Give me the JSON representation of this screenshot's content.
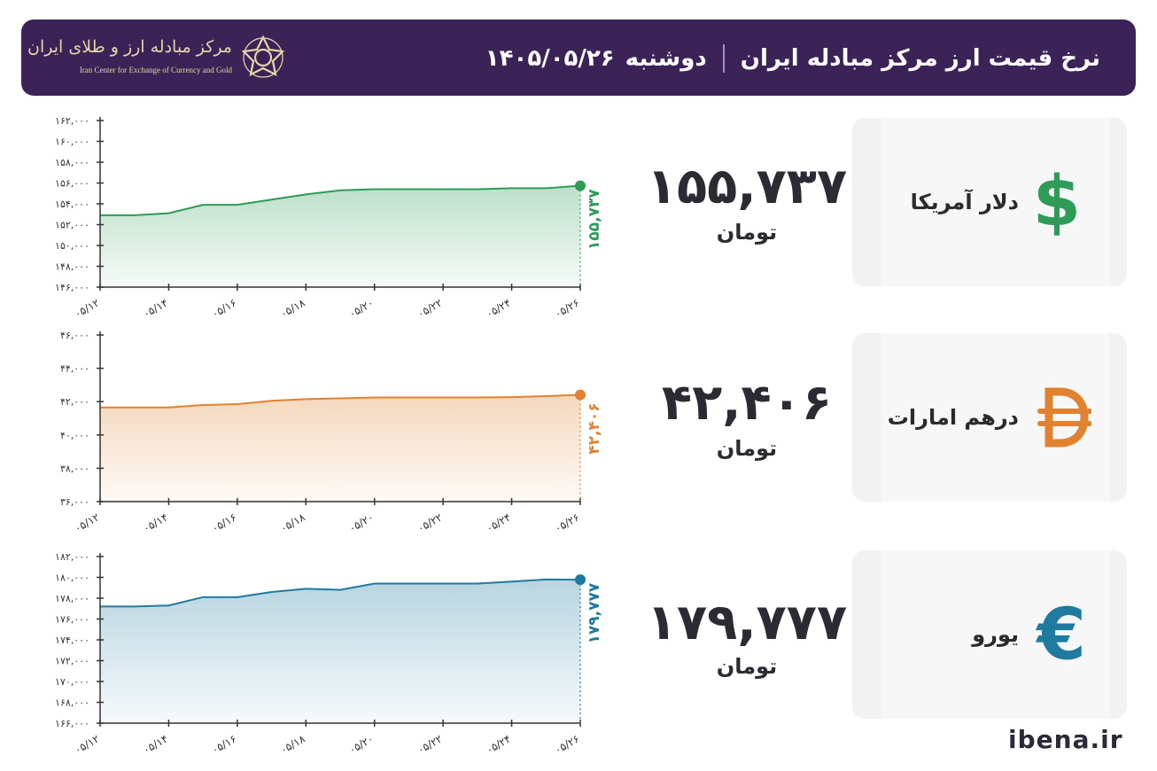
{
  "header": {
    "title": "نرخ قیمت ارز مرکز مبادله ایران",
    "weekday": "دوشنبه",
    "date": "۱۴۰۵/۰۵/۲۶",
    "logo_fa": "مرکز مبادله ارز و طلای ایران",
    "logo_en": "Iran Center for Exchange of Currency and Gold"
  },
  "colors": {
    "header_bg": "#3b2257",
    "usd": "#2e9b57",
    "aed": "#e0822f",
    "eur": "#1f7aa0"
  },
  "watermark": "ibena.ir",
  "chart_data": [
    {
      "type": "area",
      "currency": "دلار آمریکا",
      "icon": "dollar-sign-icon",
      "price_label": "۱۵۵,۷۳۷",
      "unit": "تومان",
      "end_label": "۱۵۵,۷۳۷",
      "color": "#2e9b57",
      "x": [
        "05/12",
        "05/13",
        "05/14",
        "05/15",
        "05/16",
        "05/17",
        "05/18",
        "05/19",
        "05/20",
        "05/21",
        "05/22",
        "05/23",
        "05/24",
        "05/25",
        "05/26"
      ],
      "x_tick_labels": [
        "۰۵/۱۲",
        "۰۵/۱۴",
        "۰۵/۱۶",
        "۰۵/۱۸",
        "۰۵/۲۰",
        "۰۵/۲۲",
        "۰۵/۲۴",
        "۰۵/۲۶"
      ],
      "values": [
        152900,
        152900,
        153100,
        153900,
        153900,
        154400,
        154900,
        155300,
        155400,
        155400,
        155400,
        155400,
        155500,
        155500,
        155737
      ],
      "ylim": [
        146000,
        162000
      ],
      "y_ticks": [
        146000,
        148000,
        150000,
        152000,
        154000,
        156000,
        158000,
        160000,
        162000
      ],
      "y_tick_labels": [
        "۱۴۶,۰۰۰",
        "۱۴۸,۰۰۰",
        "۱۵۰,۰۰۰",
        "۱۵۲,۰۰۰",
        "۱۵۴,۰۰۰",
        "۱۵۶,۰۰۰",
        "۱۵۸,۰۰۰",
        "۱۶۰,۰۰۰",
        "۱۶۲,۰۰۰"
      ]
    },
    {
      "type": "area",
      "currency": "درهم امارات",
      "icon": "dirham-sign-icon",
      "price_label": "۴۲,۴۰۶",
      "unit": "تومان",
      "end_label": "۴۲,۴۰۶",
      "color": "#e0822f",
      "x": [
        "05/12",
        "05/13",
        "05/14",
        "05/15",
        "05/16",
        "05/17",
        "05/18",
        "05/19",
        "05/20",
        "05/21",
        "05/22",
        "05/23",
        "05/24",
        "05/25",
        "05/26"
      ],
      "x_tick_labels": [
        "۰۵/۱۲",
        "۰۵/۱۴",
        "۰۵/۱۶",
        "۰۵/۱۸",
        "۰۵/۲۰",
        "۰۵/۲۲",
        "۰۵/۲۴",
        "۰۵/۲۶"
      ],
      "values": [
        41650,
        41650,
        41650,
        41800,
        41850,
        42050,
        42150,
        42200,
        42250,
        42250,
        42250,
        42250,
        42270,
        42330,
        42406
      ],
      "ylim": [
        36000,
        46000
      ],
      "y_ticks": [
        36000,
        38000,
        40000,
        42000,
        44000,
        46000
      ],
      "y_tick_labels": [
        "۳۶,۰۰۰",
        "۳۸,۰۰۰",
        "۴۰,۰۰۰",
        "۴۲,۰۰۰",
        "۴۴,۰۰۰",
        "۴۶,۰۰۰"
      ]
    },
    {
      "type": "area",
      "currency": "یورو",
      "icon": "euro-sign-icon",
      "price_label": "۱۷۹,۷۷۷",
      "unit": "تومان",
      "end_label": "۱۷۹,۷۷۷",
      "color": "#1f7aa0",
      "x": [
        "05/12",
        "05/13",
        "05/14",
        "05/15",
        "05/16",
        "05/17",
        "05/18",
        "05/19",
        "05/20",
        "05/21",
        "05/22",
        "05/23",
        "05/24",
        "05/25",
        "05/26"
      ],
      "x_tick_labels": [
        "۰۵/۱۲",
        "۰۵/۱۴",
        "۰۵/۱۶",
        "۰۵/۱۸",
        "۰۵/۲۰",
        "۰۵/۲۲",
        "۰۵/۲۴",
        "۰۵/۲۶"
      ],
      "values": [
        177200,
        177200,
        177300,
        178100,
        178100,
        178600,
        178900,
        178800,
        179400,
        179400,
        179400,
        179400,
        179600,
        179800,
        179777
      ],
      "ylim": [
        166000,
        182000
      ],
      "y_ticks": [
        166000,
        168000,
        170000,
        172000,
        174000,
        176000,
        178000,
        180000,
        182000
      ],
      "y_tick_labels": [
        "۱۶۶,۰۰۰",
        "۱۶۸,۰۰۰",
        "۱۷۰,۰۰۰",
        "۱۷۲,۰۰۰",
        "۱۷۴,۰۰۰",
        "۱۷۶,۰۰۰",
        "۱۷۸,۰۰۰",
        "۱۸۰,۰۰۰",
        "۱۸۲,۰۰۰"
      ]
    }
  ]
}
